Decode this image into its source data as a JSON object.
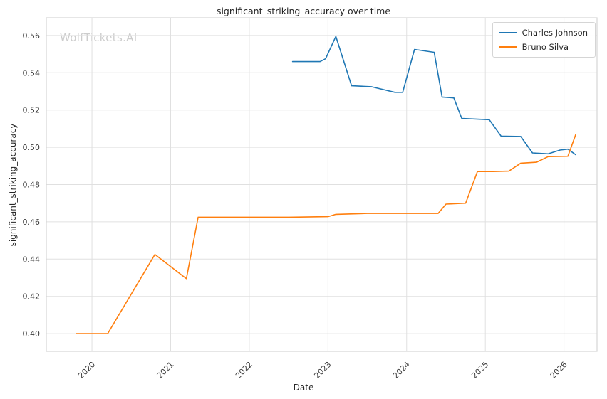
{
  "title": "significant_striking_accuracy over time",
  "watermark": "WolfTickets.AI",
  "axes": {
    "xlabel": "Date",
    "ylabel": "significant_striking_accuracy"
  },
  "colors": {
    "series_blue": "#1f77b4",
    "series_orange": "#ff7f0e",
    "grid": "#e0e0e0",
    "plot_border": "#d5d5d5",
    "tick_text": "#3b3b3b"
  },
  "chart_data": {
    "type": "line",
    "title": "significant_striking_accuracy over time",
    "xlabel": "Date",
    "ylabel": "significant_striking_accuracy",
    "grid": true,
    "legend_position": "upper right",
    "xlim": [
      2019.42,
      2026.42
    ],
    "ylim": [
      0.3905,
      0.5695
    ],
    "xticks": [
      "2020",
      "2021",
      "2022",
      "2023",
      "2024",
      "2025",
      "2026"
    ],
    "yticks": [
      "0.40",
      "0.42",
      "0.44",
      "0.46",
      "0.48",
      "0.50",
      "0.52",
      "0.54",
      "0.56"
    ],
    "series": [
      {
        "name": "Charles Johnson",
        "color": "#1f77b4",
        "points": [
          [
            2022.55,
            0.546
          ],
          [
            2022.9,
            0.546
          ],
          [
            2022.97,
            0.5475
          ],
          [
            2023.1,
            0.5595
          ],
          [
            2023.3,
            0.533
          ],
          [
            2023.55,
            0.5325
          ],
          [
            2023.85,
            0.5295
          ],
          [
            2023.95,
            0.5295
          ],
          [
            2024.1,
            0.5525
          ],
          [
            2024.35,
            0.551
          ],
          [
            2024.45,
            0.527
          ],
          [
            2024.6,
            0.5265
          ],
          [
            2024.7,
            0.5155
          ],
          [
            2024.95,
            0.515
          ],
          [
            2025.05,
            0.5148
          ],
          [
            2025.2,
            0.506
          ],
          [
            2025.45,
            0.5058
          ],
          [
            2025.6,
            0.497
          ],
          [
            2025.8,
            0.4965
          ],
          [
            2025.95,
            0.4985
          ],
          [
            2026.05,
            0.499
          ],
          [
            2026.15,
            0.496
          ]
        ]
      },
      {
        "name": "Bruno Silva",
        "color": "#ff7f0e",
        "points": [
          [
            2019.8,
            0.4
          ],
          [
            2020.05,
            0.4
          ],
          [
            2020.2,
            0.4
          ],
          [
            2020.8,
            0.4425
          ],
          [
            2021.0,
            0.436
          ],
          [
            2021.2,
            0.4295
          ],
          [
            2021.35,
            0.4625
          ],
          [
            2022.0,
            0.4625
          ],
          [
            2022.5,
            0.4625
          ],
          [
            2023.0,
            0.4628
          ],
          [
            2023.1,
            0.464
          ],
          [
            2023.5,
            0.4645
          ],
          [
            2024.0,
            0.4645
          ],
          [
            2024.4,
            0.4645
          ],
          [
            2024.5,
            0.4695
          ],
          [
            2024.75,
            0.47
          ],
          [
            2024.9,
            0.487
          ],
          [
            2025.1,
            0.487
          ],
          [
            2025.3,
            0.4872
          ],
          [
            2025.45,
            0.4915
          ],
          [
            2025.65,
            0.492
          ],
          [
            2025.8,
            0.495
          ],
          [
            2026.05,
            0.4952
          ],
          [
            2026.15,
            0.507
          ]
        ]
      }
    ]
  }
}
